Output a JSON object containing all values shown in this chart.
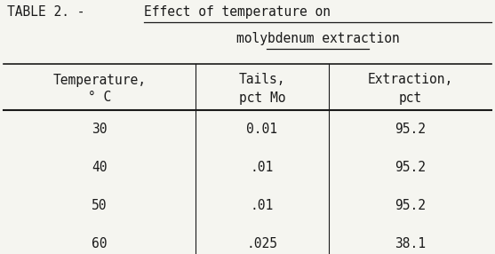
{
  "title_plain": "TABLE 2. - ",
  "title_underlined_line1": "Effect of temperature on",
  "title_underlined_line2": "molybdenum extraction",
  "col_headers_line1": [
    "Temperature,",
    "Tails,",
    "Extraction,"
  ],
  "col_headers_line2": [
    "° C",
    "pct Mo",
    "pct"
  ],
  "rows": [
    [
      "30",
      "0.01",
      "95.2"
    ],
    [
      "40",
      ".01",
      "95.2"
    ],
    [
      "50",
      ".01",
      "95.2"
    ],
    [
      "60",
      ".025",
      "38.1"
    ]
  ],
  "bg_color": "#f5f5f0",
  "text_color": "#1a1a1a",
  "font_size": 10.5,
  "title_font_size": 10.5,
  "fig_width": 5.57,
  "fig_height": 2.86,
  "dpi": 100
}
